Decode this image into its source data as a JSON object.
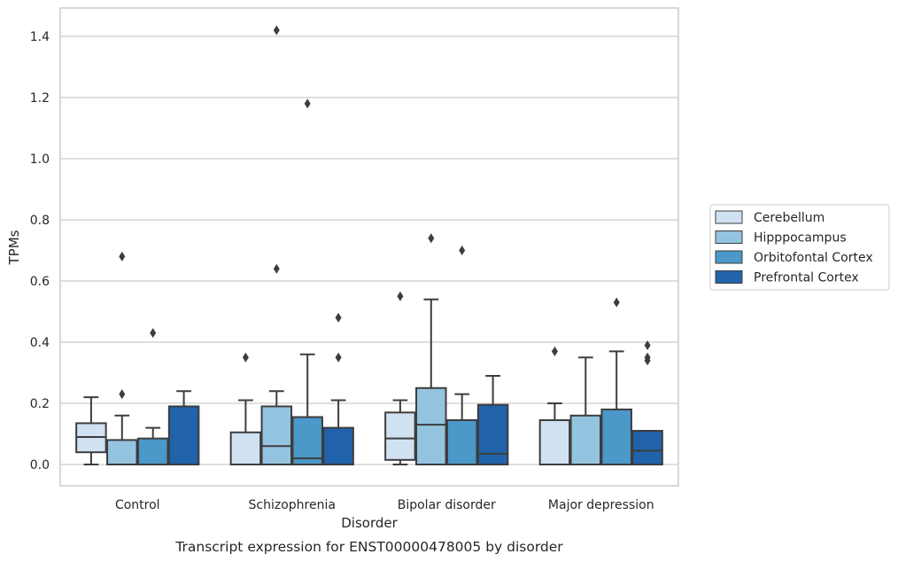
{
  "caption": "Transcript expression for ENST00000478005 by disorder",
  "colors": {
    "series": [
      "#d0e1f2",
      "#94c4df",
      "#4b98c9",
      "#2163aa"
    ],
    "grid": "#cccccc",
    "frame": "#cccccc",
    "box_edge": "#3d3d3d",
    "flier": "#3d3d3d"
  },
  "chart_data": {
    "type": "boxplot",
    "xlabel": "Disorder",
    "ylabel": "TPMs",
    "ylim": [
      -0.07,
      1.49
    ],
    "yticks": [
      0.0,
      0.2,
      0.4,
      0.6,
      0.8,
      1.0,
      1.2,
      1.4
    ],
    "ytick_labels": [
      "0.0",
      "0.2",
      "0.4",
      "0.6",
      "0.8",
      "1.0",
      "1.2",
      "1.4"
    ],
    "grid": true,
    "legend_position": "right, outside plot",
    "categories": [
      "Control",
      "Schizophrenia",
      "Bipolar disorder",
      "Major depression"
    ],
    "series": [
      {
        "name": "Cerebellum",
        "boxes": [
          {
            "whislo": 0.0,
            "q1": 0.04,
            "med": 0.09,
            "q3": 0.135,
            "whishi": 0.22,
            "fliers": []
          },
          {
            "whislo": 0.0,
            "q1": 0.0,
            "med": 0.0,
            "q3": 0.105,
            "whishi": 0.21,
            "fliers": [
              0.35
            ]
          },
          {
            "whislo": 0.0,
            "q1": 0.015,
            "med": 0.085,
            "q3": 0.17,
            "whishi": 0.21,
            "fliers": [
              0.55
            ]
          },
          {
            "whislo": 0.0,
            "q1": 0.0,
            "med": 0.0,
            "q3": 0.145,
            "whishi": 0.2,
            "fliers": [
              0.37
            ]
          }
        ]
      },
      {
        "name": "Hipppocampus",
        "boxes": [
          {
            "whislo": 0.0,
            "q1": 0.0,
            "med": 0.0,
            "q3": 0.08,
            "whishi": 0.16,
            "fliers": [
              0.23,
              0.68
            ]
          },
          {
            "whislo": 0.0,
            "q1": 0.0,
            "med": 0.06,
            "q3": 0.19,
            "whishi": 0.24,
            "fliers": [
              0.64,
              1.42
            ]
          },
          {
            "whislo": 0.0,
            "q1": 0.0,
            "med": 0.13,
            "q3": 0.25,
            "whishi": 0.54,
            "fliers": [
              0.74
            ]
          },
          {
            "whislo": 0.0,
            "q1": 0.0,
            "med": 0.0,
            "q3": 0.16,
            "whishi": 0.35,
            "fliers": []
          }
        ]
      },
      {
        "name": "Orbitofontal Cortex",
        "boxes": [
          {
            "whislo": 0.0,
            "q1": 0.0,
            "med": 0.0,
            "q3": 0.085,
            "whishi": 0.12,
            "fliers": [
              0.43
            ]
          },
          {
            "whislo": 0.0,
            "q1": 0.0,
            "med": 0.02,
            "q3": 0.155,
            "whishi": 0.36,
            "fliers": [
              1.18
            ]
          },
          {
            "whislo": 0.0,
            "q1": 0.0,
            "med": 0.0,
            "q3": 0.145,
            "whishi": 0.23,
            "fliers": [
              0.7
            ]
          },
          {
            "whislo": 0.0,
            "q1": 0.0,
            "med": 0.0,
            "q3": 0.18,
            "whishi": 0.37,
            "fliers": [
              0.53
            ]
          }
        ]
      },
      {
        "name": "Prefrontal Cortex",
        "boxes": [
          {
            "whislo": 0.0,
            "q1": 0.0,
            "med": 0.0,
            "q3": 0.19,
            "whishi": 0.24,
            "fliers": []
          },
          {
            "whislo": 0.0,
            "q1": 0.0,
            "med": 0.0,
            "q3": 0.12,
            "whishi": 0.21,
            "fliers": [
              0.35,
              0.48
            ]
          },
          {
            "whislo": 0.0,
            "q1": 0.0,
            "med": 0.035,
            "q3": 0.195,
            "whishi": 0.29,
            "fliers": []
          },
          {
            "whislo": 0.0,
            "q1": 0.0,
            "med": 0.045,
            "q3": 0.11,
            "whishi": 0.11,
            "fliers": [
              0.34,
              0.35,
              0.39
            ]
          }
        ]
      }
    ]
  }
}
